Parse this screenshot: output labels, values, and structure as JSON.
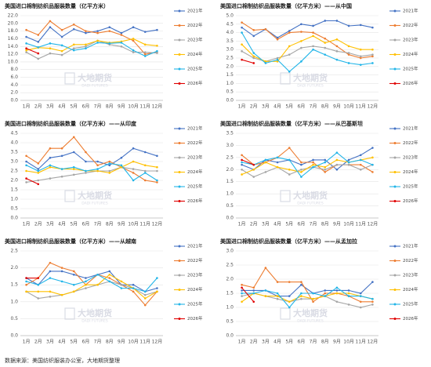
{
  "source": "数据来源：美国纺织服装办公室，大地期货整理",
  "chart_data": [
    {
      "type": "line",
      "title": "美国进口棉制纺织品服装数量（亿平方米）",
      "watermark": "大地期货",
      "watermark_sub": "DADI FUTURES",
      "categories": [
        "1月",
        "2月",
        "3月",
        "4月",
        "5月",
        "6月",
        "7月",
        "8月",
        "9月",
        "10月",
        "11月",
        "12月"
      ],
      "ylim": [
        0,
        22
      ],
      "yticks": [
        {
          "value": 0,
          "label": "0.0"
        },
        {
          "value": 2,
          "label": "2.0"
        },
        {
          "value": 4,
          "label": "4.0"
        },
        {
          "value": 6,
          "label": "6.0"
        },
        {
          "value": 8,
          "label": "8.0"
        },
        {
          "value": 10,
          "label": "10.0"
        },
        {
          "value": 12,
          "label": "12.0"
        },
        {
          "value": 14,
          "label": "14.0"
        },
        {
          "value": 16,
          "label": "16.0"
        },
        {
          "value": 18,
          "label": "18.0"
        },
        {
          "value": 20,
          "label": "20.0"
        },
        {
          "value": 22,
          "label": "22.0"
        }
      ],
      "grid": true,
      "series": [
        {
          "name": "2021年",
          "color": "#4472c4",
          "values": [
            16.5,
            15.2,
            19,
            16.5,
            18.5,
            17.5,
            18,
            19,
            17.5,
            19,
            17.8,
            18.3
          ]
        },
        {
          "name": "2022年",
          "color": "#ed7d31",
          "values": [
            18.3,
            17,
            20.6,
            18.3,
            19.7,
            18,
            17.5,
            18,
            17,
            15.5,
            12,
            12.5
          ]
        },
        {
          "name": "2023年",
          "color": "#a5a5a5",
          "values": [
            12.5,
            10.8,
            12.2,
            11.8,
            13.5,
            14,
            15.5,
            14.5,
            14,
            12.5,
            12.5,
            12.3
          ]
        },
        {
          "name": "2024年",
          "color": "#ffc000",
          "values": [
            13,
            13.7,
            13.5,
            12.8,
            14.5,
            14.5,
            15.5,
            15,
            15.3,
            16,
            14.5,
            14.2
          ]
        },
        {
          "name": "2025年",
          "color": "#22b5e8",
          "values": [
            14.8,
            13.8,
            14.8,
            14.3,
            13,
            13.5,
            15,
            14.8,
            15,
            13,
            11.5,
            12.8
          ]
        },
        {
          "name": "2026年",
          "color": "#e00000",
          "values": [
            13.5,
            12.2,
            null,
            null,
            null,
            null,
            null,
            null,
            null,
            null,
            null,
            null
          ]
        }
      ]
    },
    {
      "type": "line",
      "title": "美国进口棉制纺织品服装数量（亿平方米）——从中国",
      "watermark": "大地期货",
      "watermark_sub": "DADI FUTURES",
      "categories": [
        "1月",
        "2月",
        "3月",
        "4月",
        "5月",
        "6月",
        "7月",
        "8月",
        "9月",
        "10月",
        "11月",
        "12月"
      ],
      "ylim": [
        0,
        5
      ],
      "yticks": [
        {
          "value": 0,
          "label": "0.0"
        },
        0.5,
        {
          "value": 1,
          "label": "1.0"
        },
        1.5,
        {
          "value": 2,
          "label": "2.0"
        },
        2.5,
        {
          "value": 3,
          "label": "3.0"
        },
        3.5,
        {
          "value": 4,
          "label": "4.0"
        },
        4.5,
        {
          "value": 5,
          "label": "5.0"
        }
      ],
      "grid": true,
      "series": [
        {
          "name": "2021年",
          "color": "#4472c4",
          "values": [
            4.3,
            3.8,
            4.2,
            3.7,
            4.1,
            4.5,
            4.4,
            4.7,
            4.7,
            4.4,
            4.45,
            4.3
          ]
        },
        {
          "name": "2022年",
          "color": "#ed7d31",
          "values": [
            4.6,
            4.15,
            4.2,
            3.6,
            4,
            4.05,
            4,
            3.65,
            3.2,
            2.7,
            2.5,
            2.6
          ]
        },
        {
          "name": "2023年",
          "color": "#a5a5a5",
          "values": [
            2.9,
            2.5,
            2.3,
            2.5,
            2.7,
            3.1,
            3.2,
            3.1,
            2.9,
            2.8,
            2.6,
            2.7
          ]
        },
        {
          "name": "2024年",
          "color": "#ffc000",
          "values": [
            3.3,
            2.6,
            2.3,
            2.3,
            3.2,
            3.5,
            3.8,
            3.4,
            3.6,
            3.2,
            3,
            3
          ]
        },
        {
          "name": "2025年",
          "color": "#22b5e8",
          "values": [
            4,
            2.8,
            2.2,
            2.4,
            1.7,
            2.3,
            3,
            2.7,
            2.4,
            2.2,
            2.1,
            2.2
          ]
        },
        {
          "name": "2026年",
          "color": "#e00000",
          "values": [
            2.4,
            2.2,
            null,
            null,
            null,
            null,
            null,
            null,
            null,
            null,
            null,
            null
          ]
        }
      ]
    },
    {
      "type": "line",
      "title": "美国进口棉制纺织品服装数量（亿平方米）——从印度",
      "watermark": "大地期货",
      "watermark_sub": "DADI FUTURES",
      "categories": [
        "1月",
        "2月",
        "3月",
        "4月",
        "5月",
        "6月",
        "7月",
        "8月",
        "9月",
        "10月",
        "11月",
        "12月"
      ],
      "ylim": [
        0,
        4.5
      ],
      "yticks": [
        {
          "value": 0,
          "label": "0.0"
        },
        0.5,
        {
          "value": 1,
          "label": "1.0"
        },
        1.5,
        {
          "value": 2,
          "label": "2.0"
        },
        2.5,
        {
          "value": 3,
          "label": "3.0"
        },
        3.5,
        {
          "value": 4,
          "label": "4.0"
        },
        4.5
      ],
      "grid": true,
      "series": [
        {
          "name": "2021年",
          "color": "#4472c4",
          "values": [
            3,
            2.6,
            3.2,
            3.3,
            3.5,
            3,
            3,
            2.8,
            3.2,
            3.7,
            3.5,
            3.3
          ]
        },
        {
          "name": "2022年",
          "color": "#ed7d31",
          "values": [
            3.3,
            2.9,
            3.7,
            3.7,
            4.3,
            3.5,
            2.8,
            3,
            2.7,
            2.4,
            2,
            1.9
          ]
        },
        {
          "name": "2023年",
          "color": "#a5a5a5",
          "values": [
            1.9,
            2,
            2.1,
            2.2,
            2.3,
            2.4,
            2.5,
            2.5,
            2.7,
            2.6,
            2.5,
            2.5
          ]
        },
        {
          "name": "2024年",
          "color": "#ffc000",
          "values": [
            2.5,
            2.4,
            2.7,
            2.6,
            2.6,
            2.5,
            2.5,
            2.4,
            2.7,
            3,
            2.8,
            2.7
          ]
        },
        {
          "name": "2025年",
          "color": "#22b5e8",
          "values": [
            2.8,
            2.5,
            2.8,
            2.6,
            2.7,
            2.5,
            2.6,
            2.9,
            2.8,
            2,
            2.4,
            2
          ]
        },
        {
          "name": "2026年",
          "color": "#e00000",
          "values": [
            2.1,
            1.8,
            null,
            null,
            null,
            null,
            null,
            null,
            null,
            null,
            null,
            null
          ]
        }
      ]
    },
    {
      "type": "line",
      "title": "美国进口棉制纺织品服装数量（亿平方米）——从巴基斯坦",
      "watermark": "大地期货",
      "watermark_sub": "DADI FUTURES",
      "categories": [
        "1月",
        "2月",
        "3月",
        "4月",
        "5月",
        "6月",
        "7月",
        "8月",
        "9月",
        "10月",
        "11月",
        "12月"
      ],
      "ylim": [
        0,
        3.5
      ],
      "yticks": [
        {
          "value": 0,
          "label": "0.0"
        },
        0.5,
        {
          "value": 1,
          "label": "1.0"
        },
        1.5,
        {
          "value": 2,
          "label": "2.0"
        },
        2.5,
        {
          "value": 3,
          "label": "3.0"
        },
        3.5
      ],
      "grid": true,
      "series": [
        {
          "name": "2021年",
          "color": "#4472c4",
          "values": [
            2.2,
            2,
            2.4,
            2.3,
            2.4,
            2.2,
            2.4,
            2.4,
            2,
            2.4,
            2.6,
            2.9
          ]
        },
        {
          "name": "2022年",
          "color": "#ed7d31",
          "values": [
            2.6,
            2.2,
            2.3,
            2.5,
            2.9,
            2.3,
            2.3,
            1.9,
            2.2,
            2.2,
            2.2,
            1.9
          ]
        },
        {
          "name": "2023年",
          "color": "#a5a5a5",
          "values": [
            2,
            1.7,
            1.9,
            2.1,
            1.8,
            2,
            2.1,
            2,
            2.2,
            2.2,
            2,
            2.2
          ]
        },
        {
          "name": "2024年",
          "color": "#ffc000",
          "values": [
            1.8,
            2,
            2.3,
            2.1,
            2,
            1.9,
            2.2,
            2.1,
            2.4,
            2.3,
            2.4,
            2.5
          ]
        },
        {
          "name": "2025年",
          "color": "#22b5e8",
          "values": [
            2.3,
            2.2,
            2.4,
            2.5,
            2.4,
            1.7,
            2.1,
            2.3,
            2.7,
            2.3,
            2.4,
            2.2
          ]
        },
        {
          "name": "2026年",
          "color": "#e00000",
          "values": [
            2.4,
            2.2,
            null,
            null,
            null,
            null,
            null,
            null,
            null,
            null,
            null,
            null
          ]
        }
      ]
    },
    {
      "type": "line",
      "title": "美国进口棉制纺织品服装数量（亿平方米）——从越南",
      "watermark": "大地期货",
      "watermark_sub": "DADI FUTURES",
      "categories": [
        "1月",
        "2月",
        "3月",
        "4月",
        "5月",
        "6月",
        "7月",
        "8月",
        "9月",
        "10月",
        "11月",
        "12月"
      ],
      "ylim": [
        0,
        2.5
      ],
      "yticks": [
        {
          "value": 0,
          "label": "0.0"
        },
        0.5,
        {
          "value": 1,
          "label": "1.0"
        },
        1.5,
        {
          "value": 2,
          "label": "2.0"
        },
        2.5
      ],
      "grid": true,
      "series": [
        {
          "name": "2021年",
          "color": "#4472c4",
          "values": [
            1.7,
            1.5,
            1.9,
            1.9,
            1.8,
            1.7,
            1.8,
            1.9,
            1.5,
            1.5,
            1.3,
            1.4
          ]
        },
        {
          "name": "2022年",
          "color": "#ed7d31",
          "values": [
            1.5,
            1.7,
            2.15,
            2,
            1.9,
            1.5,
            1.8,
            1.7,
            1.5,
            1.3,
            0.9,
            1.3
          ]
        },
        {
          "name": "2023年",
          "color": "#a5a5a5",
          "values": [
            1.3,
            1.1,
            1.15,
            1.2,
            1.3,
            1.4,
            1.5,
            1.6,
            1.5,
            1.4,
            1.2,
            1.3
          ]
        },
        {
          "name": "2024年",
          "color": "#ffc000",
          "values": [
            1.3,
            1.3,
            1.3,
            1.2,
            1.3,
            1.5,
            1.5,
            1.8,
            1.6,
            1.4,
            1.1,
            1.3
          ]
        },
        {
          "name": "2025年",
          "color": "#22b5e8",
          "values": [
            1.6,
            1.5,
            1.7,
            1.6,
            1.5,
            1.6,
            1.8,
            1.6,
            1.4,
            1.4,
            1.3,
            1.7
          ]
        },
        {
          "name": "2026年",
          "color": "#e00000",
          "values": [
            1.7,
            1.7,
            null,
            null,
            null,
            null,
            null,
            null,
            null,
            null,
            null,
            null
          ]
        }
      ]
    },
    {
      "type": "line",
      "title": "美国进口棉制纺织品服装数量（亿平方米）——从孟加拉",
      "watermark": "大地期货",
      "watermark_sub": "DADI FUTURES",
      "categories": [
        "1月",
        "2月",
        "3月",
        "4月",
        "5月",
        "6月",
        "7月",
        "8月",
        "9月",
        "10月",
        "11月",
        "12月"
      ],
      "ylim": [
        0,
        3
      ],
      "yticks": [
        {
          "value": 0,
          "label": "0.0"
        },
        0.5,
        {
          "value": 1,
          "label": "1.0"
        },
        1.5,
        {
          "value": 2,
          "label": "2.0"
        },
        2.5,
        {
          "value": 3,
          "label": "3.0"
        }
      ],
      "grid": true,
      "series": [
        {
          "name": "2021年",
          "color": "#4472c4",
          "values": [
            1.6,
            1.6,
            1.6,
            1.4,
            1.4,
            1.8,
            1.5,
            1.6,
            1.6,
            1.6,
            1.5,
            1.9
          ]
        },
        {
          "name": "2022年",
          "color": "#ed7d31",
          "values": [
            1.8,
            1.7,
            2.4,
            1.9,
            1.9,
            1.9,
            1.2,
            1.5,
            1.5,
            1.4,
            1.2,
            1.2
          ]
        },
        {
          "name": "2023年",
          "color": "#a5a5a5",
          "values": [
            1.4,
            1.5,
            1.4,
            1.3,
            1.2,
            1.3,
            1.3,
            1.4,
            1.2,
            1.1,
            1,
            1.1
          ]
        },
        {
          "name": "2024年",
          "color": "#ffc000",
          "values": [
            1.2,
            1.5,
            1.4,
            1.4,
            1.2,
            1.4,
            1.3,
            1.4,
            1.5,
            1.5,
            1.4,
            1.3
          ]
        },
        {
          "name": "2025年",
          "color": "#22b5e8",
          "values": [
            1.5,
            1.5,
            1.6,
            1.5,
            1,
            1.5,
            1.5,
            1.4,
            1.7,
            1.4,
            1.4,
            1.3
          ]
        },
        {
          "name": "2026年",
          "color": "#e00000",
          "values": [
            1.7,
            1.2,
            null,
            null,
            null,
            null,
            null,
            null,
            null,
            null,
            null,
            null
          ]
        }
      ]
    }
  ]
}
